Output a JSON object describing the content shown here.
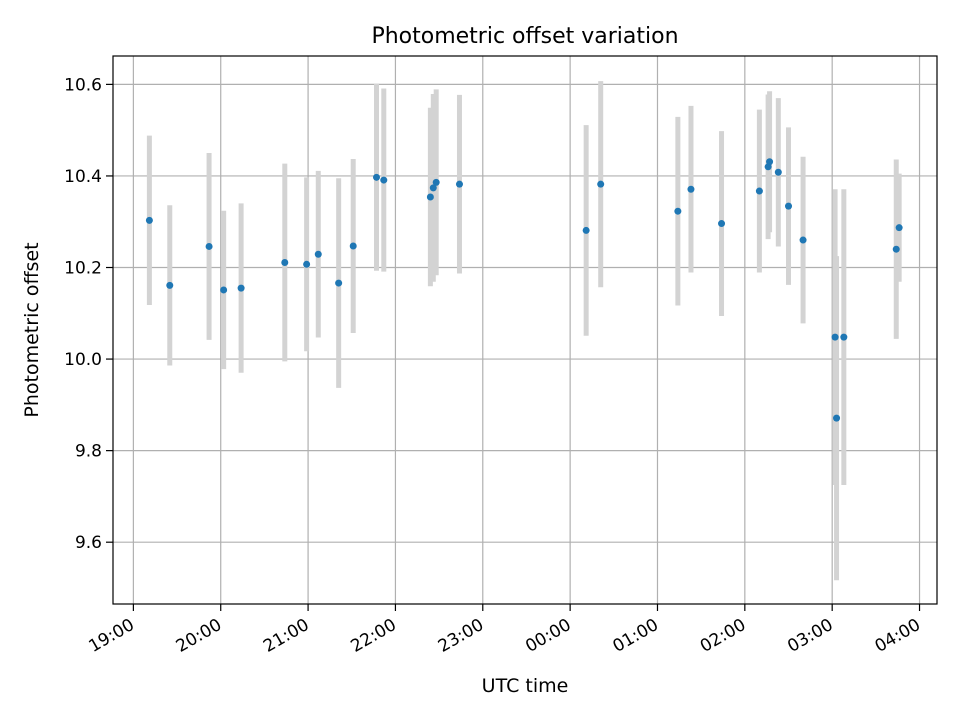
{
  "chart_data": {
    "type": "scatter",
    "title": "Photometric offset variation",
    "xlabel": "UTC time",
    "ylabel": "Photometric offset",
    "xlim": [
      "18:46",
      "04:12"
    ],
    "ylim": [
      9.465,
      10.662
    ],
    "grid": true,
    "x_ticks": [
      "19:00",
      "20:00",
      "21:00",
      "22:00",
      "23:00",
      "00:00",
      "01:00",
      "02:00",
      "03:00",
      "04:00"
    ],
    "y_ticks": [
      9.6,
      9.8,
      10.0,
      10.2,
      10.4,
      10.6
    ],
    "colors": {
      "point": "#1f77b4",
      "errorbar": "#d3d3d3",
      "grid": "#b0b0b0"
    },
    "points": [
      {
        "x": "19:11",
        "y": 10.303,
        "lo": 10.118,
        "hi": 10.488
      },
      {
        "x": "19:25",
        "y": 10.161,
        "lo": 9.986,
        "hi": 10.336
      },
      {
        "x": "19:52",
        "y": 10.246,
        "lo": 10.042,
        "hi": 10.45
      },
      {
        "x": "20:02",
        "y": 10.151,
        "lo": 9.978,
        "hi": 10.324
      },
      {
        "x": "20:14",
        "y": 10.155,
        "lo": 9.97,
        "hi": 10.34
      },
      {
        "x": "20:44",
        "y": 10.211,
        "lo": 9.995,
        "hi": 10.427
      },
      {
        "x": "20:59",
        "y": 10.207,
        "lo": 10.017,
        "hi": 10.397
      },
      {
        "x": "21:07",
        "y": 10.229,
        "lo": 10.047,
        "hi": 10.411
      },
      {
        "x": "21:21",
        "y": 10.166,
        "lo": 9.937,
        "hi": 10.395
      },
      {
        "x": "21:31",
        "y": 10.247,
        "lo": 10.057,
        "hi": 10.437
      },
      {
        "x": "21:47",
        "y": 10.397,
        "lo": 10.193,
        "hi": 10.601
      },
      {
        "x": "21:52",
        "y": 10.391,
        "lo": 10.191,
        "hi": 10.591
      },
      {
        "x": "22:24",
        "y": 10.354,
        "lo": 10.159,
        "hi": 10.549
      },
      {
        "x": "22:26",
        "y": 10.374,
        "lo": 10.169,
        "hi": 10.579
      },
      {
        "x": "22:28",
        "y": 10.386,
        "lo": 10.183,
        "hi": 10.589
      },
      {
        "x": "22:44",
        "y": 10.382,
        "lo": 10.187,
        "hi": 10.577
      },
      {
        "x": "00:11",
        "y": 10.281,
        "lo": 10.051,
        "hi": 10.511
      },
      {
        "x": "00:21",
        "y": 10.382,
        "lo": 10.157,
        "hi": 10.607
      },
      {
        "x": "01:14",
        "y": 10.323,
        "lo": 10.117,
        "hi": 10.529
      },
      {
        "x": "01:23",
        "y": 10.371,
        "lo": 10.189,
        "hi": 10.553
      },
      {
        "x": "01:44",
        "y": 10.296,
        "lo": 10.094,
        "hi": 10.498
      },
      {
        "x": "02:10",
        "y": 10.367,
        "lo": 10.189,
        "hi": 10.545
      },
      {
        "x": "02:16",
        "y": 10.42,
        "lo": 10.262,
        "hi": 10.578
      },
      {
        "x": "02:17",
        "y": 10.431,
        "lo": 10.277,
        "hi": 10.585
      },
      {
        "x": "02:23",
        "y": 10.408,
        "lo": 10.246,
        "hi": 10.57
      },
      {
        "x": "02:30",
        "y": 10.334,
        "lo": 10.162,
        "hi": 10.506
      },
      {
        "x": "02:40",
        "y": 10.26,
        "lo": 10.078,
        "hi": 10.442
      },
      {
        "x": "03:02",
        "y": 10.048,
        "lo": 9.725,
        "hi": 10.371
      },
      {
        "x": "03:03",
        "y": 9.871,
        "lo": 9.517,
        "hi": 10.225
      },
      {
        "x": "03:08",
        "y": 10.048,
        "lo": 9.725,
        "hi": 10.371
      },
      {
        "x": "03:44",
        "y": 10.24,
        "lo": 10.044,
        "hi": 10.436
      },
      {
        "x": "03:46",
        "y": 10.287,
        "lo": 10.169,
        "hi": 10.405
      }
    ]
  }
}
